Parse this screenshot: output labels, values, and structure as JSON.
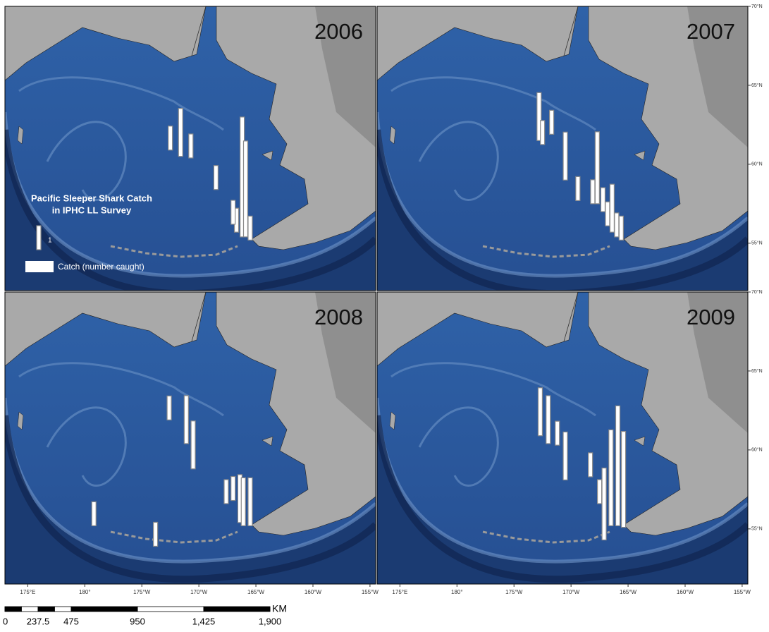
{
  "panels": [
    {
      "year": "2006",
      "catches": [
        {
          "lon": 187.5,
          "lat": 60.9,
          "count": 1
        },
        {
          "lon": 188.4,
          "lat": 60.5,
          "count": 2
        },
        {
          "lon": 189.3,
          "lat": 60.4,
          "count": 1
        },
        {
          "lon": 191.5,
          "lat": 58.4,
          "count": 1
        },
        {
          "lon": 193.3,
          "lat": 55.7,
          "count": 1
        },
        {
          "lon": 193.8,
          "lat": 55.4,
          "count": 5
        },
        {
          "lon": 194.1,
          "lat": 55.4,
          "count": 4
        },
        {
          "lon": 193.0,
          "lat": 56.2,
          "count": 1
        },
        {
          "lon": 194.5,
          "lat": 55.2,
          "count": 1
        }
      ]
    },
    {
      "year": "2007",
      "catches": [
        {
          "lon": 187.2,
          "lat": 61.5,
          "count": 2
        },
        {
          "lon": 187.5,
          "lat": 61.25,
          "count": 1
        },
        {
          "lon": 188.3,
          "lat": 61.9,
          "count": 1
        },
        {
          "lon": 189.5,
          "lat": 59.0,
          "count": 2
        },
        {
          "lon": 190.6,
          "lat": 57.7,
          "count": 1
        },
        {
          "lon": 191.9,
          "lat": 57.5,
          "count": 1
        },
        {
          "lon": 192.3,
          "lat": 57.5,
          "count": 3
        },
        {
          "lon": 192.8,
          "lat": 57.0,
          "count": 1
        },
        {
          "lon": 193.2,
          "lat": 56.1,
          "count": 1
        },
        {
          "lon": 193.6,
          "lat": 55.7,
          "count": 2
        },
        {
          "lon": 194.0,
          "lat": 55.4,
          "count": 1
        },
        {
          "lon": 194.4,
          "lat": 55.2,
          "count": 1
        }
      ]
    },
    {
      "year": "2008",
      "catches": [
        {
          "lon": 187.4,
          "lat": 61.9,
          "count": 1
        },
        {
          "lon": 188.9,
          "lat": 60.4,
          "count": 2
        },
        {
          "lon": 189.5,
          "lat": 58.8,
          "count": 2
        },
        {
          "lon": 192.4,
          "lat": 56.6,
          "count": 1
        },
        {
          "lon": 193.0,
          "lat": 56.8,
          "count": 1
        },
        {
          "lon": 193.6,
          "lat": 55.4,
          "count": 2
        },
        {
          "lon": 193.9,
          "lat": 55.2,
          "count": 2
        },
        {
          "lon": 194.5,
          "lat": 55.2,
          "count": 2
        },
        {
          "lon": 180.8,
          "lat": 55.2,
          "count": 1
        },
        {
          "lon": 186.2,
          "lat": 53.9,
          "count": 1
        }
      ]
    },
    {
      "year": "2009",
      "catches": [
        {
          "lon": 187.3,
          "lat": 60.9,
          "count": 2
        },
        {
          "lon": 188.0,
          "lat": 60.4,
          "count": 2
        },
        {
          "lon": 188.8,
          "lat": 60.3,
          "count": 1
        },
        {
          "lon": 189.5,
          "lat": 58.1,
          "count": 2
        },
        {
          "lon": 191.7,
          "lat": 58.3,
          "count": 1
        },
        {
          "lon": 192.5,
          "lat": 56.6,
          "count": 1
        },
        {
          "lon": 192.9,
          "lat": 54.3,
          "count": 3
        },
        {
          "lon": 193.5,
          "lat": 55.2,
          "count": 4
        },
        {
          "lon": 194.1,
          "lat": 55.2,
          "count": 5
        },
        {
          "lon": 194.6,
          "lat": 55.1,
          "count": 4
        }
      ]
    }
  ],
  "legend": {
    "title": [
      "Pacific Sleeper Shark Catch",
      "in IPHC LL Survey"
    ],
    "sample": 1,
    "label": "Catch (number caught)"
  },
  "lonlim": [
    173,
    205.5
  ],
  "latlim": [
    52,
    70
  ],
  "lonticks": [
    {
      "value": 175,
      "label": "175°E"
    },
    {
      "value": 180,
      "label": "180°"
    },
    {
      "value": 185,
      "label": "175°W"
    },
    {
      "value": 190,
      "label": "170°W"
    },
    {
      "value": 195,
      "label": "165°W"
    },
    {
      "value": 200,
      "label": "160°W"
    },
    {
      "value": 205,
      "label": "155°W"
    }
  ],
  "latticks": [
    {
      "value": 70,
      "label": "70°N"
    },
    {
      "value": 65,
      "label": "65°N"
    },
    {
      "value": 60,
      "label": "60°N"
    },
    {
      "value": 55,
      "label": "55°N"
    }
  ],
  "scale": {
    "unit": "KM",
    "ticks": [
      0,
      237.5,
      475,
      950,
      {
        "value": 1425,
        "label": "1,425"
      },
      {
        "value": 1900,
        "label": "1,900"
      }
    ]
  }
}
